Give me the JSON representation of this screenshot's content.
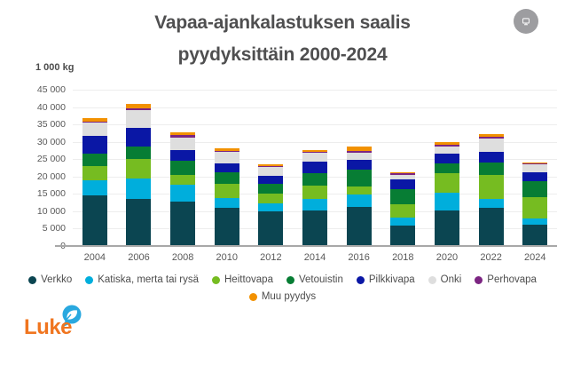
{
  "title": {
    "line1": "Vapaa-ajankalastuksen saalis",
    "line2": "pyydyksittäin 2000-2024"
  },
  "header": {
    "button_icon": "monitor-icon"
  },
  "y_axis": {
    "unit": "1 000 kg",
    "tick_labels": [
      "45 000",
      "40 000",
      "35 000",
      "30 000",
      "25 000",
      "20 000",
      "15 000",
      "10 000",
      "5 000",
      "0"
    ]
  },
  "chart_data": {
    "type": "bar",
    "stacked": true,
    "title": "Vapaa-ajankalastuksen saalis pyydyksittäin 2000-2024",
    "xlabel": "",
    "ylabel": "1 000 kg",
    "ylim": [
      0,
      45000
    ],
    "grid": true,
    "legend_position": "bottom",
    "categories": [
      "2004",
      "2006",
      "2008",
      "2010",
      "2012",
      "2014",
      "2016",
      "2018",
      "2020",
      "2022",
      "2024"
    ],
    "series": [
      {
        "name": "Verkko",
        "color": "#0b4551",
        "values": [
          14500,
          13500,
          12900,
          11000,
          10000,
          10300,
          11200,
          5800,
          10300,
          11000,
          6100
        ]
      },
      {
        "name": "Katiska, merta tai rysä",
        "color": "#00aedc",
        "values": [
          4300,
          6000,
          4800,
          2700,
          2400,
          3200,
          3700,
          2300,
          5100,
          2600,
          1900
        ]
      },
      {
        "name": "Heittovapa",
        "color": "#76bc21",
        "values": [
          4300,
          5500,
          2700,
          4100,
          2600,
          3800,
          2200,
          3800,
          5600,
          6800,
          6200
        ]
      },
      {
        "name": "Vetouistin",
        "color": "#077d34",
        "values": [
          3600,
          3600,
          4100,
          3400,
          2900,
          3700,
          4800,
          4400,
          2900,
          3600,
          4400
        ]
      },
      {
        "name": "Pilkkivapa",
        "color": "#0a17a5",
        "values": [
          5100,
          5300,
          3000,
          2700,
          2400,
          3200,
          2900,
          2800,
          2600,
          3100,
          2700
        ]
      },
      {
        "name": "Onki",
        "color": "#dedede",
        "values": [
          3700,
          5200,
          3600,
          3200,
          2600,
          2600,
          2000,
          1400,
          2200,
          3900,
          2200
        ]
      },
      {
        "name": "Perhovapa",
        "color": "#7c2582",
        "values": [
          400,
          500,
          900,
          400,
          200,
          300,
          500,
          400,
          500,
          500,
          200
        ]
      },
      {
        "name": "Muu pyydys",
        "color": "#f29100",
        "values": [
          1000,
          1200,
          800,
          700,
          500,
          500,
          1400,
          300,
          700,
          800,
          300
        ]
      }
    ]
  },
  "legend": {
    "row_break": 7
  },
  "logo": {
    "text": "Luke",
    "text_color": "#f0751f",
    "bubble_color": "#29a8df"
  }
}
